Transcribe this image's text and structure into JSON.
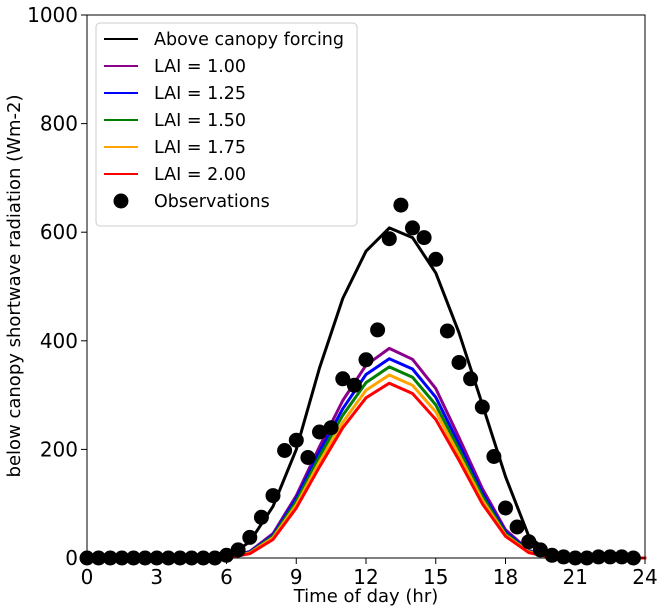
{
  "chart_data": {
    "type": "line",
    "xlabel": "Time of day (hr)",
    "ylabel": "below canopy shortwave radiation (Wm-2)",
    "xlim": [
      0,
      24
    ],
    "ylim": [
      0,
      1000
    ],
    "xticks": [
      0,
      3,
      6,
      9,
      12,
      15,
      18,
      21,
      24
    ],
    "yticks": [
      0,
      200,
      400,
      600,
      800,
      1000
    ],
    "grid": false,
    "legend_position": "top-left",
    "x": [
      0,
      1,
      2,
      3,
      4,
      5,
      6,
      7,
      8,
      9,
      10,
      11,
      12,
      13,
      14,
      15,
      16,
      17,
      18,
      19,
      20,
      21,
      22,
      23,
      24
    ],
    "series": [
      {
        "name": "Above canopy forcing",
        "color": "#000000",
        "values": [
          0,
          0,
          0,
          0,
          0,
          0,
          0,
          30,
          95,
          200,
          350,
          478,
          565,
          608,
          590,
          525,
          415,
          283,
          150,
          40,
          5,
          0,
          0,
          0,
          0
        ]
      },
      {
        "name": "LAI = 1.00",
        "color": "#8b008b",
        "values": [
          0,
          0,
          0,
          0,
          0,
          0,
          0,
          12,
          45,
          115,
          205,
          290,
          355,
          386,
          366,
          312,
          222,
          128,
          52,
          14,
          2,
          0,
          0,
          0,
          0
        ]
      },
      {
        "name": "LAI = 1.25",
        "color": "#0000ff",
        "values": [
          0,
          0,
          0,
          0,
          0,
          0,
          0,
          11,
          42,
          110,
          196,
          275,
          338,
          367,
          348,
          296,
          210,
          120,
          48,
          13,
          2,
          0,
          0,
          0,
          0
        ]
      },
      {
        "name": "LAI = 1.50",
        "color": "#008000",
        "values": [
          0,
          0,
          0,
          0,
          0,
          0,
          0,
          10,
          40,
          104,
          187,
          263,
          323,
          352,
          333,
          282,
          200,
          114,
          45,
          12,
          2,
          0,
          0,
          0,
          0
        ]
      },
      {
        "name": "LAI = 1.75",
        "color": "#ffa500",
        "values": [
          0,
          0,
          0,
          0,
          0,
          0,
          0,
          9,
          37,
          98,
          177,
          250,
          309,
          337,
          318,
          269,
          190,
          107,
          42,
          11,
          2,
          0,
          0,
          0,
          0
        ]
      },
      {
        "name": "LAI = 2.00",
        "color": "#ff0000",
        "values": [
          0,
          0,
          0,
          0,
          0,
          0,
          0,
          8,
          34,
          92,
          168,
          240,
          295,
          322,
          303,
          255,
          180,
          100,
          40,
          10,
          1,
          0,
          0,
          0,
          0
        ]
      }
    ],
    "observations": {
      "name": "Observations",
      "color": "#000000",
      "x": [
        0,
        0.5,
        1,
        1.5,
        2,
        2.5,
        3,
        3.5,
        4,
        4.5,
        5,
        5.5,
        6,
        6.5,
        7,
        7.5,
        8,
        8.5,
        9,
        9.5,
        10,
        10.5,
        11,
        11.5,
        12,
        12.5,
        13,
        13.5,
        14,
        14.5,
        15,
        15.5,
        16,
        16.5,
        17,
        17.5,
        18,
        18.5,
        19,
        19.5,
        20,
        20.5,
        21,
        21.5,
        22,
        22.5,
        23,
        23.5
      ],
      "y": [
        0,
        0,
        0,
        0,
        0,
        0,
        0,
        0,
        0,
        0,
        0,
        0,
        5,
        15,
        38,
        75,
        115,
        198,
        217,
        185,
        232,
        240,
        330,
        318,
        365,
        420,
        588,
        650,
        608,
        590,
        550,
        418,
        360,
        330,
        278,
        187,
        92,
        57,
        30,
        15,
        5,
        2,
        0,
        0,
        2,
        2,
        2,
        0
      ]
    }
  }
}
